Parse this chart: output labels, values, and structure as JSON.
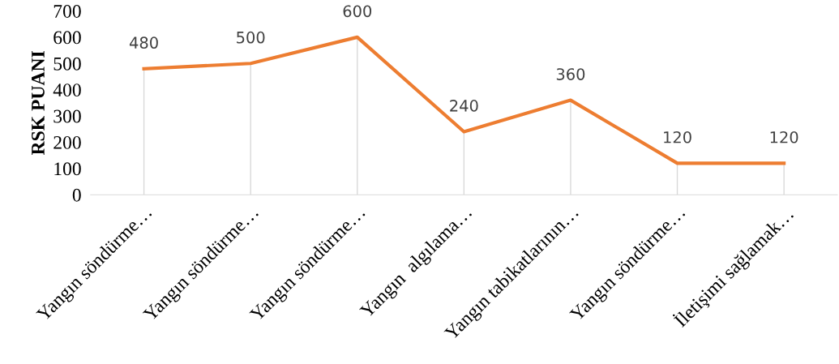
{
  "chart_data": {
    "type": "line",
    "ylabel": "RSK PUANI",
    "categories": [
      "Yangın söndürme…",
      "Yangın söndürme…",
      "Yangın söndürme…",
      "Yangın  algılama…",
      "Yangın tabikatlarının…",
      "Yangın söndürme…",
      "İletişimi sağlamak…"
    ],
    "series": [
      {
        "color": "#ed7d31",
        "values": [
          480,
          500,
          600,
          240,
          360,
          120,
          120
        ]
      }
    ],
    "ylim": [
      0,
      700
    ],
    "yticks": [
      0,
      100,
      200,
      300,
      400,
      500,
      600,
      700
    ],
    "grid": "x",
    "data_labels": true,
    "marker": "none",
    "line_style": "solid",
    "legend": false
  }
}
